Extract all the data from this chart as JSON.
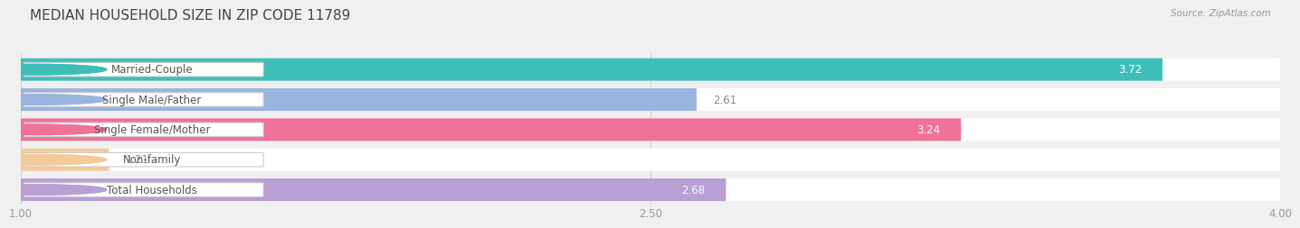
{
  "title": "MEDIAN HOUSEHOLD SIZE IN ZIP CODE 11789",
  "source": "Source: ZipAtlas.com",
  "categories": [
    "Married-Couple",
    "Single Male/Father",
    "Single Female/Mother",
    "Non-family",
    "Total Households"
  ],
  "values": [
    3.72,
    2.61,
    3.24,
    1.21,
    2.68
  ],
  "bar_colors": [
    "#3dbfb8",
    "#9ab4e0",
    "#f07298",
    "#f5c99a",
    "#b89fd4"
  ],
  "xlim": [
    1.0,
    4.0
  ],
  "xticks": [
    1.0,
    2.5,
    4.0
  ],
  "xtick_labels": [
    "1.00",
    "2.50",
    "4.00"
  ],
  "label_fontsize": 8.5,
  "value_fontsize": 8.5,
  "title_fontsize": 11,
  "background_color": "#f0f0f0",
  "row_bg_color": "#ffffff",
  "grid_color": "#d0d0d0"
}
